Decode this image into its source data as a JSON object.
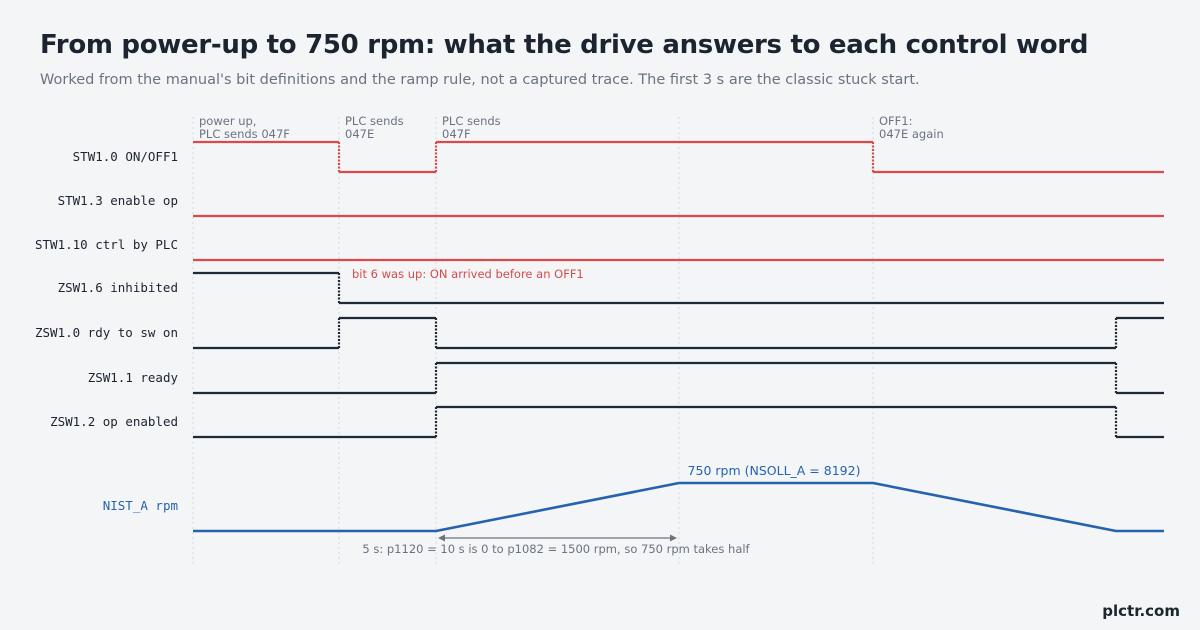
{
  "title": "From power-up to 750 rpm: what the drive answers to each control word",
  "subtitle": "Worked from the manual's bit definitions and the ramp rule, not a captured trace. The first 3 s are the classic stuck start.",
  "brand": "plctr.com",
  "colors": {
    "command": "#d94a4a",
    "status": "#1f2a36",
    "speed": "#2563ad",
    "grid": "#d3d8de",
    "annotation_text": "#6b7380",
    "note_red": "#d94a4a",
    "arrow": "#6b7380"
  },
  "events": [
    {
      "lines": [
        "power up,",
        "PLC sends 047F"
      ]
    },
    {
      "lines": [
        "PLC sends",
        "047E"
      ]
    },
    {
      "lines": [
        "PLC sends",
        "047F"
      ]
    },
    {
      "lines": [
        "OFF1:",
        "047E again"
      ]
    }
  ],
  "signals": [
    {
      "label": "STW1.0  ON/OFF1",
      "kind": "command"
    },
    {
      "label": "STW1.3  enable op",
      "kind": "command"
    },
    {
      "label": "STW1.10 ctrl by PLC",
      "kind": "command"
    },
    {
      "label": "ZSW1.6  inhibited",
      "kind": "status"
    },
    {
      "label": "ZSW1.0  rdy to sw on",
      "kind": "status"
    },
    {
      "label": "ZSW1.1  ready",
      "kind": "status"
    },
    {
      "label": "ZSW1.2  op enabled",
      "kind": "status"
    }
  ],
  "speed_trace": {
    "label": "NIST_A  rpm",
    "peak_label": "750 rpm  (NSOLL_A = 8192)",
    "max_rpm": 750
  },
  "notes": {
    "inhibit_note": "bit 6 was up: ON arrived before an OFF1",
    "ramp_note": "5 s: p1120 = 10 s is 0 to p1082 = 1500 rpm, so 750 rpm takes half"
  }
}
